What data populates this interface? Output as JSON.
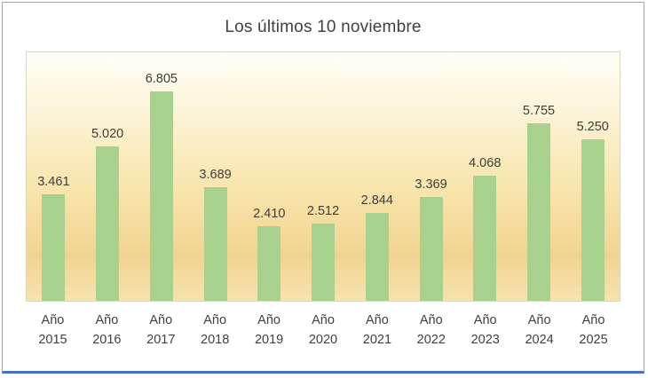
{
  "chart_data": {
    "type": "bar",
    "title": "Los últimos 10 noviembre",
    "categories": [
      "Año 2015",
      "Año 2016",
      "Año 2017",
      "Año 2018",
      "Año 2019",
      "Año 2020",
      "Año 2021",
      "Año 2022",
      "Año 2023",
      "Año 2024",
      "Año 2025"
    ],
    "category_prefix": "Año",
    "years": [
      "2015",
      "2016",
      "2017",
      "2018",
      "2019",
      "2020",
      "2021",
      "2022",
      "2023",
      "2024",
      "2025"
    ],
    "values": [
      3461,
      5020,
      6805,
      3689,
      2410,
      2512,
      2844,
      3369,
      4068,
      5755,
      5250
    ],
    "value_labels": [
      "3.461",
      "5.020",
      "6.805",
      "3.689",
      "2.410",
      "2.512",
      "2.844",
      "3.369",
      "4.068",
      "5.755",
      "5.250"
    ],
    "xlabel": "",
    "ylabel": "",
    "ylim": [
      0,
      7000
    ],
    "grid": false,
    "legend": "none",
    "colors": {
      "bar": "#a9d18e",
      "title_text": "#404040",
      "label_text": "#3d3d3d",
      "frame_border": "#a6a6a6",
      "frame_accent_bottom": "#4472c4",
      "plot_gradient_top": "#fffef9",
      "plot_gradient_mid": "#f8e5ac",
      "plot_gradient_bottom": "#f2d491"
    }
  }
}
